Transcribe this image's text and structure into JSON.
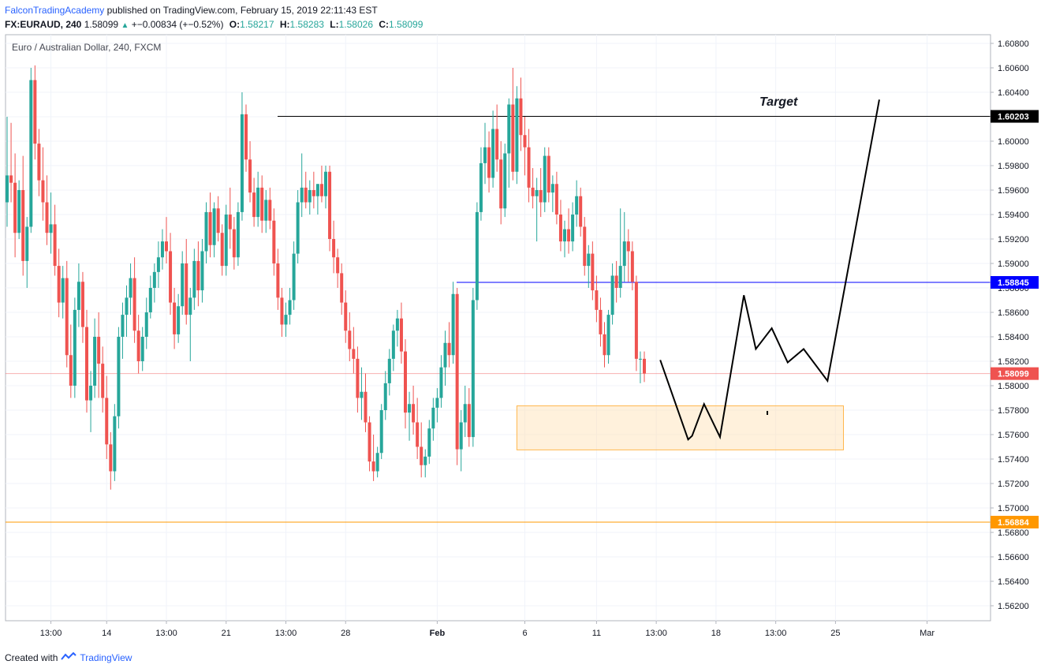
{
  "header": {
    "author": "FalconTradingAcademy",
    "published": "published on TradingView.com, February 15, 2019 22:11:43 EST",
    "symbol": "FX:EURAUD, 240",
    "last": "1.58099",
    "change": "+−0.00834 (+−0.52%)",
    "o_label": "O:",
    "o_value": "1.58217",
    "h_label": "H:",
    "h_value": "1.58283",
    "l_label": "L:",
    "l_value": "1.58026",
    "c_label": "C:",
    "c_value": "1.58099"
  },
  "footer": {
    "created_with": "Created with",
    "brand": "TradingView"
  },
  "chart_data": {
    "type": "candlestick",
    "title": "Euro / Australian Dollar, 240, FXCM",
    "ylim": [
      1.56,
      1.61
    ],
    "y_ticks": [
      "1.60800",
      "1.60600",
      "1.60400",
      "1.60200",
      "1.60000",
      "1.59800",
      "1.59600",
      "1.59400",
      "1.59200",
      "1.59000",
      "1.58800",
      "1.58600",
      "1.58400",
      "1.58200",
      "1.58000",
      "1.57800",
      "1.57600",
      "1.57400",
      "1.57200",
      "1.57000",
      "1.56800",
      "1.56600",
      "1.56400",
      "1.56200"
    ],
    "x_ticks": [
      {
        "label": "13:00",
        "i": 11
      },
      {
        "label": "14",
        "i": 25
      },
      {
        "label": "13:00",
        "i": 40
      },
      {
        "label": "21",
        "i": 55
      },
      {
        "label": "13:00",
        "i": 70
      },
      {
        "label": "28",
        "i": 85
      },
      {
        "label": "Feb",
        "i": 108,
        "bold": true
      },
      {
        "label": "6",
        "i": 130
      },
      {
        "label": "11",
        "i": 148
      },
      {
        "label": "13:00",
        "i": 163
      },
      {
        "label": "18",
        "i": 178
      },
      {
        "label": "13:00",
        "i": 193
      },
      {
        "label": "25",
        "i": 208
      },
      {
        "label": "Mar",
        "i": 231
      }
    ],
    "candles": [
      {
        "o": 1.595,
        "h": 1.602,
        "l": 1.593,
        "c": 1.5972
      },
      {
        "o": 1.5972,
        "h": 1.6015,
        "l": 1.595,
        "c": 1.5966
      },
      {
        "o": 1.5966,
        "h": 1.599,
        "l": 1.5905,
        "c": 1.5925
      },
      {
        "o": 1.5925,
        "h": 1.5968,
        "l": 1.592,
        "c": 1.596
      },
      {
        "o": 1.596,
        "h": 1.5988,
        "l": 1.589,
        "c": 1.5902
      },
      {
        "o": 1.5902,
        "h": 1.5938,
        "l": 1.588,
        "c": 1.593
      },
      {
        "o": 1.593,
        "h": 1.606,
        "l": 1.5925,
        "c": 1.605
      },
      {
        "o": 1.605,
        "h": 1.6062,
        "l": 1.5985,
        "c": 1.5998
      },
      {
        "o": 1.5998,
        "h": 1.601,
        "l": 1.5955,
        "c": 1.5968
      },
      {
        "o": 1.5968,
        "h": 1.5995,
        "l": 1.5935,
        "c": 1.595
      },
      {
        "o": 1.595,
        "h": 1.5972,
        "l": 1.5915,
        "c": 1.5925
      },
      {
        "o": 1.5925,
        "h": 1.5958,
        "l": 1.5908,
        "c": 1.5932
      },
      {
        "o": 1.5932,
        "h": 1.5948,
        "l": 1.589,
        "c": 1.5898
      },
      {
        "o": 1.5898,
        "h": 1.5912,
        "l": 1.5856,
        "c": 1.5868
      },
      {
        "o": 1.5868,
        "h": 1.5898,
        "l": 1.5855,
        "c": 1.5888
      },
      {
        "o": 1.5888,
        "h": 1.5902,
        "l": 1.5815,
        "c": 1.5825
      },
      {
        "o": 1.5825,
        "h": 1.585,
        "l": 1.579,
        "c": 1.58
      },
      {
        "o": 1.58,
        "h": 1.5872,
        "l": 1.579,
        "c": 1.5862
      },
      {
        "o": 1.5862,
        "h": 1.59,
        "l": 1.5848,
        "c": 1.5885
      },
      {
        "o": 1.5885,
        "h": 1.5893,
        "l": 1.5835,
        "c": 1.5848
      },
      {
        "o": 1.5848,
        "h": 1.5862,
        "l": 1.5778,
        "c": 1.5788
      },
      {
        "o": 1.5788,
        "h": 1.5812,
        "l": 1.5762,
        "c": 1.58
      },
      {
        "o": 1.58,
        "h": 1.5855,
        "l": 1.579,
        "c": 1.584
      },
      {
        "o": 1.584,
        "h": 1.586,
        "l": 1.579,
        "c": 1.5818
      },
      {
        "o": 1.5818,
        "h": 1.5832,
        "l": 1.5778,
        "c": 1.579
      },
      {
        "o": 1.579,
        "h": 1.5808,
        "l": 1.574,
        "c": 1.5752
      },
      {
        "o": 1.5752,
        "h": 1.5762,
        "l": 1.5715,
        "c": 1.573
      },
      {
        "o": 1.573,
        "h": 1.5785,
        "l": 1.5722,
        "c": 1.5775
      },
      {
        "o": 1.5775,
        "h": 1.5848,
        "l": 1.5765,
        "c": 1.584
      },
      {
        "o": 1.584,
        "h": 1.5868,
        "l": 1.5822,
        "c": 1.5858
      },
      {
        "o": 1.5858,
        "h": 1.5882,
        "l": 1.584,
        "c": 1.5872
      },
      {
        "o": 1.5872,
        "h": 1.59,
        "l": 1.5858,
        "c": 1.5888
      },
      {
        "o": 1.5888,
        "h": 1.5905,
        "l": 1.5835,
        "c": 1.5845
      },
      {
        "o": 1.5845,
        "h": 1.5858,
        "l": 1.581,
        "c": 1.582
      },
      {
        "o": 1.582,
        "h": 1.5848,
        "l": 1.5812,
        "c": 1.584
      },
      {
        "o": 1.584,
        "h": 1.5872,
        "l": 1.583,
        "c": 1.586
      },
      {
        "o": 1.586,
        "h": 1.589,
        "l": 1.5855,
        "c": 1.588
      },
      {
        "o": 1.588,
        "h": 1.59,
        "l": 1.5868,
        "c": 1.5893
      },
      {
        "o": 1.5893,
        "h": 1.5918,
        "l": 1.588,
        "c": 1.5905
      },
      {
        "o": 1.5905,
        "h": 1.5928,
        "l": 1.5895,
        "c": 1.5918
      },
      {
        "o": 1.5918,
        "h": 1.5938,
        "l": 1.59,
        "c": 1.591
      },
      {
        "o": 1.591,
        "h": 1.5925,
        "l": 1.5858,
        "c": 1.5868
      },
      {
        "o": 1.5868,
        "h": 1.588,
        "l": 1.583,
        "c": 1.5842
      },
      {
        "o": 1.5842,
        "h": 1.5875,
        "l": 1.5835,
        "c": 1.5865
      },
      {
        "o": 1.5865,
        "h": 1.591,
        "l": 1.5858,
        "c": 1.59
      },
      {
        "o": 1.59,
        "h": 1.592,
        "l": 1.585,
        "c": 1.5858
      },
      {
        "o": 1.5858,
        "h": 1.588,
        "l": 1.582,
        "c": 1.5872
      },
      {
        "o": 1.5872,
        "h": 1.5912,
        "l": 1.5862,
        "c": 1.5902
      },
      {
        "o": 1.5902,
        "h": 1.5918,
        "l": 1.5865,
        "c": 1.5878
      },
      {
        "o": 1.5878,
        "h": 1.592,
        "l": 1.5868,
        "c": 1.591
      },
      {
        "o": 1.591,
        "h": 1.595,
        "l": 1.59,
        "c": 1.5942
      },
      {
        "o": 1.5942,
        "h": 1.5958,
        "l": 1.5905,
        "c": 1.5915
      },
      {
        "o": 1.5915,
        "h": 1.595,
        "l": 1.5905,
        "c": 1.5945
      },
      {
        "o": 1.5945,
        "h": 1.5955,
        "l": 1.5918,
        "c": 1.5925
      },
      {
        "o": 1.5925,
        "h": 1.5932,
        "l": 1.589,
        "c": 1.5898
      },
      {
        "o": 1.5898,
        "h": 1.5948,
        "l": 1.589,
        "c": 1.594
      },
      {
        "o": 1.594,
        "h": 1.5962,
        "l": 1.5912,
        "c": 1.5928
      },
      {
        "o": 1.5928,
        "h": 1.5938,
        "l": 1.5895,
        "c": 1.5905
      },
      {
        "o": 1.5905,
        "h": 1.595,
        "l": 1.5898,
        "c": 1.5942
      },
      {
        "o": 1.5942,
        "h": 1.604,
        "l": 1.5935,
        "c": 1.6022
      },
      {
        "o": 1.6022,
        "h": 1.603,
        "l": 1.5975,
        "c": 1.5985
      },
      {
        "o": 1.5985,
        "h": 1.6,
        "l": 1.595,
        "c": 1.5958
      },
      {
        "o": 1.5958,
        "h": 1.597,
        "l": 1.593,
        "c": 1.5938
      },
      {
        "o": 1.5938,
        "h": 1.5975,
        "l": 1.593,
        "c": 1.5962
      },
      {
        "o": 1.5962,
        "h": 1.5972,
        "l": 1.5925,
        "c": 1.5935
      },
      {
        "o": 1.5935,
        "h": 1.596,
        "l": 1.5925,
        "c": 1.5952
      },
      {
        "o": 1.5952,
        "h": 1.5962,
        "l": 1.5928,
        "c": 1.5935
      },
      {
        "o": 1.5935,
        "h": 1.5945,
        "l": 1.589,
        "c": 1.59
      },
      {
        "o": 1.59,
        "h": 1.5912,
        "l": 1.5862,
        "c": 1.5872
      },
      {
        "o": 1.5872,
        "h": 1.588,
        "l": 1.584,
        "c": 1.585
      },
      {
        "o": 1.585,
        "h": 1.5868,
        "l": 1.584,
        "c": 1.5858
      },
      {
        "o": 1.5858,
        "h": 1.588,
        "l": 1.585,
        "c": 1.587
      },
      {
        "o": 1.587,
        "h": 1.5918,
        "l": 1.5862,
        "c": 1.5908
      },
      {
        "o": 1.5908,
        "h": 1.596,
        "l": 1.59,
        "c": 1.595
      },
      {
        "o": 1.595,
        "h": 1.599,
        "l": 1.5938,
        "c": 1.5962
      },
      {
        "o": 1.5962,
        "h": 1.5975,
        "l": 1.5945,
        "c": 1.595
      },
      {
        "o": 1.595,
        "h": 1.5968,
        "l": 1.594,
        "c": 1.596
      },
      {
        "o": 1.596,
        "h": 1.5975,
        "l": 1.5945,
        "c": 1.5955
      },
      {
        "o": 1.5955,
        "h": 1.5965,
        "l": 1.594,
        "c": 1.5965
      },
      {
        "o": 1.5965,
        "h": 1.598,
        "l": 1.595,
        "c": 1.5955
      },
      {
        "o": 1.5955,
        "h": 1.598,
        "l": 1.5945,
        "c": 1.5975
      },
      {
        "o": 1.5975,
        "h": 1.598,
        "l": 1.591,
        "c": 1.592
      },
      {
        "o": 1.592,
        "h": 1.5935,
        "l": 1.5892,
        "c": 1.5905
      },
      {
        "o": 1.5905,
        "h": 1.5912,
        "l": 1.588,
        "c": 1.5892
      },
      {
        "o": 1.5892,
        "h": 1.59,
        "l": 1.5858,
        "c": 1.5868
      },
      {
        "o": 1.5868,
        "h": 1.5878,
        "l": 1.5835,
        "c": 1.5845
      },
      {
        "o": 1.5845,
        "h": 1.586,
        "l": 1.582,
        "c": 1.583
      },
      {
        "o": 1.583,
        "h": 1.5848,
        "l": 1.581,
        "c": 1.5822
      },
      {
        "o": 1.5822,
        "h": 1.5832,
        "l": 1.5778,
        "c": 1.579
      },
      {
        "o": 1.579,
        "h": 1.5815,
        "l": 1.5772,
        "c": 1.5795
      },
      {
        "o": 1.5795,
        "h": 1.581,
        "l": 1.5762,
        "c": 1.577
      },
      {
        "o": 1.577,
        "h": 1.5775,
        "l": 1.573,
        "c": 1.5738
      },
      {
        "o": 1.5738,
        "h": 1.576,
        "l": 1.5722,
        "c": 1.573
      },
      {
        "o": 1.573,
        "h": 1.575,
        "l": 1.5725,
        "c": 1.5745
      },
      {
        "o": 1.5745,
        "h": 1.5785,
        "l": 1.574,
        "c": 1.578
      },
      {
        "o": 1.578,
        "h": 1.5812,
        "l": 1.5772,
        "c": 1.5802
      },
      {
        "o": 1.5802,
        "h": 1.583,
        "l": 1.5792,
        "c": 1.5822
      },
      {
        "o": 1.5822,
        "h": 1.585,
        "l": 1.5812,
        "c": 1.5845
      },
      {
        "o": 1.5845,
        "h": 1.5862,
        "l": 1.5832,
        "c": 1.5855
      },
      {
        "o": 1.5855,
        "h": 1.5868,
        "l": 1.5818,
        "c": 1.5828
      },
      {
        "o": 1.5828,
        "h": 1.5838,
        "l": 1.5765,
        "c": 1.5778
      },
      {
        "o": 1.5778,
        "h": 1.5795,
        "l": 1.5755,
        "c": 1.5785
      },
      {
        "o": 1.5785,
        "h": 1.58,
        "l": 1.576,
        "c": 1.577
      },
      {
        "o": 1.577,
        "h": 1.579,
        "l": 1.574,
        "c": 1.575
      },
      {
        "o": 1.575,
        "h": 1.577,
        "l": 1.5725,
        "c": 1.5735
      },
      {
        "o": 1.5735,
        "h": 1.5748,
        "l": 1.5725,
        "c": 1.5742
      },
      {
        "o": 1.5742,
        "h": 1.5772,
        "l": 1.5736,
        "c": 1.5765
      },
      {
        "o": 1.5765,
        "h": 1.579,
        "l": 1.5755,
        "c": 1.5782
      },
      {
        "o": 1.5782,
        "h": 1.5798,
        "l": 1.577,
        "c": 1.579
      },
      {
        "o": 1.579,
        "h": 1.5825,
        "l": 1.5782,
        "c": 1.5815
      },
      {
        "o": 1.5815,
        "h": 1.5845,
        "l": 1.58,
        "c": 1.5835
      },
      {
        "o": 1.5835,
        "h": 1.5852,
        "l": 1.5815,
        "c": 1.5825
      },
      {
        "o": 1.5825,
        "h": 1.5885,
        "l": 1.5818,
        "c": 1.5875
      },
      {
        "o": 1.5875,
        "h": 1.588,
        "l": 1.5735,
        "c": 1.5748
      },
      {
        "o": 1.5748,
        "h": 1.578,
        "l": 1.573,
        "c": 1.577
      },
      {
        "o": 1.577,
        "h": 1.58,
        "l": 1.5758,
        "c": 1.5785
      },
      {
        "o": 1.5785,
        "h": 1.5798,
        "l": 1.575,
        "c": 1.5758
      },
      {
        "o": 1.5758,
        "h": 1.588,
        "l": 1.575,
        "c": 1.587
      },
      {
        "o": 1.587,
        "h": 1.595,
        "l": 1.5862,
        "c": 1.5942
      },
      {
        "o": 1.5942,
        "h": 1.5995,
        "l": 1.5935,
        "c": 1.5982
      },
      {
        "o": 1.5982,
        "h": 1.6015,
        "l": 1.5965,
        "c": 1.5995
      },
      {
        "o": 1.5995,
        "h": 1.6008,
        "l": 1.5958,
        "c": 1.597
      },
      {
        "o": 1.597,
        "h": 1.6025,
        "l": 1.5962,
        "c": 1.601
      },
      {
        "o": 1.601,
        "h": 1.603,
        "l": 1.5975,
        "c": 1.5985
      },
      {
        "o": 1.5985,
        "h": 1.6,
        "l": 1.5932,
        "c": 1.5945
      },
      {
        "o": 1.5945,
        "h": 1.5998,
        "l": 1.5938,
        "c": 1.599
      },
      {
        "o": 1.599,
        "h": 1.6035,
        "l": 1.5962,
        "c": 1.603
      },
      {
        "o": 1.603,
        "h": 1.606,
        "l": 1.5968,
        "c": 1.5975
      },
      {
        "o": 1.5975,
        "h": 1.6045,
        "l": 1.5965,
        "c": 1.6035
      },
      {
        "o": 1.6035,
        "h": 1.6052,
        "l": 1.5992,
        "c": 1.6005
      },
      {
        "o": 1.6005,
        "h": 1.602,
        "l": 1.5972,
        "c": 1.5995
      },
      {
        "o": 1.5995,
        "h": 1.601,
        "l": 1.595,
        "c": 1.5962
      },
      {
        "o": 1.5962,
        "h": 1.5978,
        "l": 1.5945,
        "c": 1.5955
      },
      {
        "o": 1.5955,
        "h": 1.597,
        "l": 1.5918,
        "c": 1.596
      },
      {
        "o": 1.596,
        "h": 1.5978,
        "l": 1.5938,
        "c": 1.595
      },
      {
        "o": 1.595,
        "h": 1.5995,
        "l": 1.5942,
        "c": 1.5988
      },
      {
        "o": 1.5988,
        "h": 1.5995,
        "l": 1.595,
        "c": 1.5958
      },
      {
        "o": 1.5958,
        "h": 1.5972,
        "l": 1.5942,
        "c": 1.5965
      },
      {
        "o": 1.5965,
        "h": 1.5975,
        "l": 1.5932,
        "c": 1.594
      },
      {
        "o": 1.594,
        "h": 1.5952,
        "l": 1.591,
        "c": 1.5918
      },
      {
        "o": 1.5918,
        "h": 1.5935,
        "l": 1.5905,
        "c": 1.5928
      },
      {
        "o": 1.5928,
        "h": 1.5945,
        "l": 1.5908,
        "c": 1.5918
      },
      {
        "o": 1.5918,
        "h": 1.595,
        "l": 1.591,
        "c": 1.594
      },
      {
        "o": 1.594,
        "h": 1.5968,
        "l": 1.593,
        "c": 1.5955
      },
      {
        "o": 1.5955,
        "h": 1.5962,
        "l": 1.5922,
        "c": 1.593
      },
      {
        "o": 1.593,
        "h": 1.5938,
        "l": 1.589,
        "c": 1.5898
      },
      {
        "o": 1.5898,
        "h": 1.5915,
        "l": 1.588,
        "c": 1.5908
      },
      {
        "o": 1.5908,
        "h": 1.5918,
        "l": 1.587,
        "c": 1.5878
      },
      {
        "o": 1.5878,
        "h": 1.589,
        "l": 1.5852,
        "c": 1.5862
      },
      {
        "o": 1.5862,
        "h": 1.5872,
        "l": 1.5832,
        "c": 1.5842
      },
      {
        "o": 1.5842,
        "h": 1.5852,
        "l": 1.5815,
        "c": 1.5825
      },
      {
        "o": 1.5825,
        "h": 1.5862,
        "l": 1.5818,
        "c": 1.5858
      },
      {
        "o": 1.5858,
        "h": 1.59,
        "l": 1.585,
        "c": 1.589
      },
      {
        "o": 1.589,
        "h": 1.5902,
        "l": 1.5868,
        "c": 1.588
      },
      {
        "o": 1.588,
        "h": 1.5945,
        "l": 1.5872,
        "c": 1.5898
      },
      {
        "o": 1.5898,
        "h": 1.5942,
        "l": 1.5885,
        "c": 1.5918
      },
      {
        "o": 1.5918,
        "h": 1.5928,
        "l": 1.5885,
        "c": 1.591
      },
      {
        "o": 1.591,
        "h": 1.5918,
        "l": 1.5878,
        "c": 1.5885
      },
      {
        "o": 1.5885,
        "h": 1.589,
        "l": 1.5812,
        "c": 1.5822
      },
      {
        "o": 1.5822,
        "h": 1.5828,
        "l": 1.5802,
        "c": 1.5822
      },
      {
        "o": 1.5822,
        "h": 1.5828,
        "l": 1.5803,
        "c": 1.581
      }
    ],
    "series": [
      {
        "name": "1.60203",
        "value": 1.60203,
        "color": "#000000"
      },
      {
        "name": "1.58845",
        "value": 1.58845,
        "color": "#0000ff"
      },
      {
        "name": "1.58099",
        "value": 1.58099,
        "color": "#ef5350"
      },
      {
        "name": "1.56884",
        "value": 1.56884,
        "color": "#ff9800"
      }
    ],
    "annotations": {
      "target_label": "Target",
      "zone": {
        "y_top": 1.57835,
        "y_bottom": 1.57475
      },
      "projection": [
        {
          "i": 164,
          "y": 1.5821
        },
        {
          "i": 171,
          "y": 1.5756
        },
        {
          "i": 172,
          "y": 1.5759
        },
        {
          "i": 175,
          "y": 1.5785
        },
        {
          "i": 179,
          "y": 1.5758
        },
        {
          "i": 185,
          "y": 1.5874
        },
        {
          "i": 188,
          "y": 1.583
        },
        {
          "i": 192,
          "y": 1.5847
        },
        {
          "i": 196,
          "y": 1.5819
        },
        {
          "i": 200,
          "y": 1.583
        },
        {
          "i": 206,
          "y": 1.5804
        },
        {
          "i": 219,
          "y": 1.6034
        }
      ]
    },
    "colors": {
      "up": "#26a69a",
      "down": "#ef5350",
      "grid": "#f0f3fa",
      "zone_fill": "#ffe0b2",
      "zone_stroke": "#ffb74d"
    }
  }
}
